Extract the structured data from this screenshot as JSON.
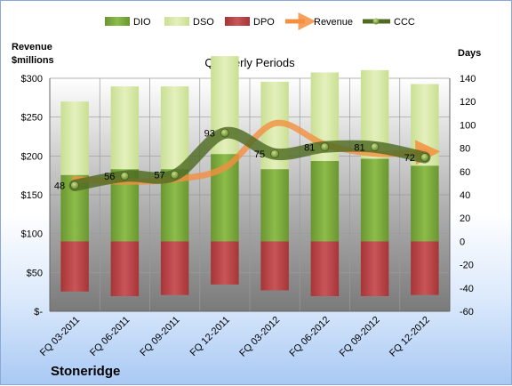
{
  "chart_data": {
    "type": "bar",
    "title": "Quarterly Periods",
    "company": "Stoneridge",
    "left_axis_label_line1": "Revenue",
    "left_axis_label_line2": "$millions",
    "right_axis_label": "Days",
    "categories": [
      "FQ 03-2011",
      "FQ 06-2011",
      "FQ 09-2011",
      "FQ 12-2011",
      "FQ 03-2012",
      "FQ 06-2012",
      "FQ 09-2012",
      "FQ 12-2012"
    ],
    "left_ticks": [
      "$-",
      "$50",
      "$100",
      "$150",
      "$200",
      "$250",
      "$300"
    ],
    "left_ylim": [
      0,
      300
    ],
    "right_ticks": [
      "-60",
      "-40",
      "-20",
      "0",
      "20",
      "40",
      "60",
      "80",
      "100",
      "120",
      "140"
    ],
    "right_ylim": [
      -60,
      140
    ],
    "legend_position": "top",
    "series": [
      {
        "name": "DIO",
        "kind": "stacked-bar",
        "color": "#77a33a",
        "values": [
          57,
          62,
          62,
          75,
          62,
          69,
          71,
          65
        ]
      },
      {
        "name": "DSO",
        "kind": "stacked-bar",
        "color": "#d6e8a6",
        "values": [
          63,
          71,
          71,
          84,
          75,
          76,
          76,
          70
        ]
      },
      {
        "name": "DPO",
        "kind": "negative-bar",
        "color": "#b84448",
        "values": [
          -43,
          -47,
          -46,
          -37,
          -42,
          -47,
          -47,
          -46
        ]
      },
      {
        "name": "Revenue",
        "kind": "line",
        "color": "#f39040",
        "values": [
          170,
          167,
          170,
          185,
          242,
          215,
          203,
          205
        ]
      },
      {
        "name": "CCC",
        "kind": "line",
        "color": "#4f6b23",
        "values": [
          48,
          56,
          57,
          93,
          75,
          81,
          81,
          72
        ]
      }
    ],
    "data_labels": [
      "48",
      "56",
      "57",
      "93",
      "75",
      "81",
      "81",
      "72"
    ]
  }
}
